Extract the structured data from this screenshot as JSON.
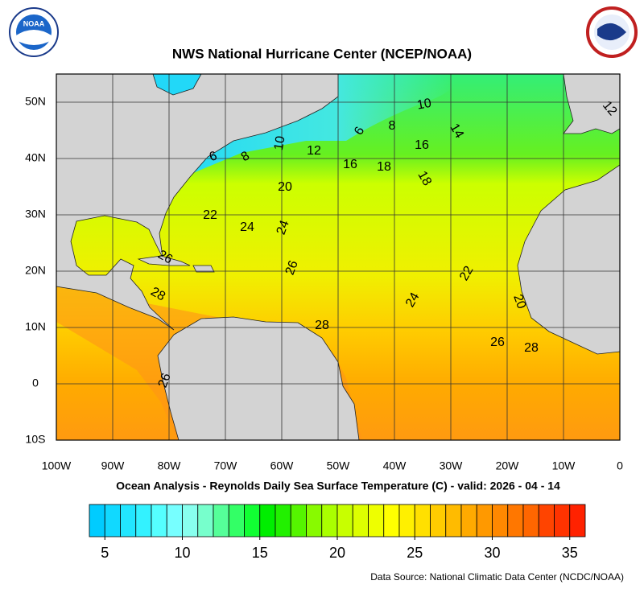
{
  "header": {
    "title": "NWS National Hurricane Center (NCEP/NOAA)",
    "logo_left": "NOAA"
  },
  "map": {
    "lonlim": [
      -100,
      0
    ],
    "latlim": [
      -10,
      55
    ],
    "lon_ticks": [
      {
        "value": -100,
        "label": "100W"
      },
      {
        "value": -90,
        "label": "90W"
      },
      {
        "value": -80,
        "label": "80W"
      },
      {
        "value": -70,
        "label": "70W"
      },
      {
        "value": -60,
        "label": "60W"
      },
      {
        "value": -50,
        "label": "50W"
      },
      {
        "value": -40,
        "label": "40W"
      },
      {
        "value": -30,
        "label": "30W"
      },
      {
        "value": -20,
        "label": "20W"
      },
      {
        "value": -10,
        "label": "10W"
      },
      0
    ],
    "lat_ticks": [
      {
        "value": 50,
        "label": "50N"
      },
      {
        "value": 40,
        "label": "40N"
      },
      {
        "value": 30,
        "label": "30N"
      },
      {
        "value": 20,
        "label": "20N"
      },
      {
        "value": 10,
        "label": "10N"
      },
      0,
      {
        "value": -10,
        "label": "10S"
      }
    ],
    "contour_labels": [
      10,
      8,
      6,
      14,
      12,
      16,
      12,
      10,
      8,
      6,
      16,
      18,
      18,
      20,
      22,
      24,
      24,
      26,
      26,
      22,
      28,
      24,
      20,
      28,
      26,
      28,
      26
    ]
  },
  "subtitle": "Ocean Analysis - Reynolds Daily Sea Surface Temperature (C) - valid: 2026 - 04 - 14",
  "colorbar": {
    "range": [
      4,
      36
    ],
    "ticks": [
      5,
      10,
      15,
      20,
      25,
      30,
      35
    ],
    "colors": [
      "#00ccff",
      "#11d9ff",
      "#22e6ff",
      "#33f2ff",
      "#55ffff",
      "#77ffff",
      "#88ffee",
      "#77ffcc",
      "#55ff99",
      "#33ff66",
      "#11ff33",
      "#00ee00",
      "#22f000",
      "#55f500",
      "#88fa00",
      "#aaff00",
      "#c8ff00",
      "#ddff00",
      "#eeff00",
      "#ffff00",
      "#fff000",
      "#ffe000",
      "#ffcc00",
      "#ffbb00",
      "#ffaa00",
      "#ff9900",
      "#ff8800",
      "#ff7700",
      "#ff6600",
      "#ff4400",
      "#ff3300",
      "#ff2200"
    ]
  },
  "footer": {
    "source": "Data Source: National Climatic Data Center (NCDC/NOAA)"
  }
}
